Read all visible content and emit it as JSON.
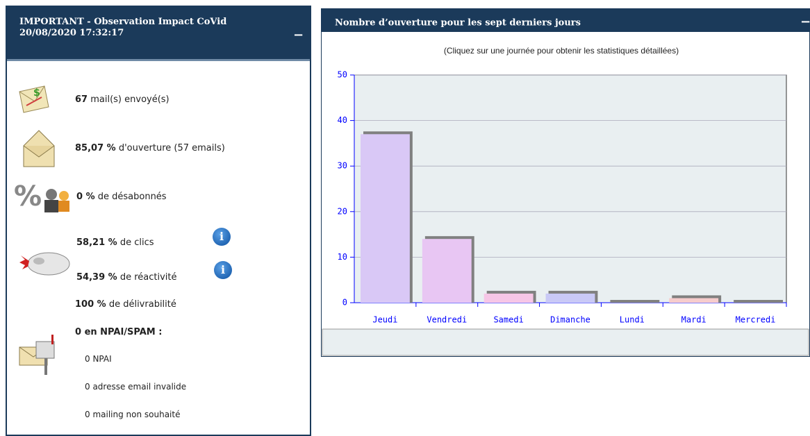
{
  "panel": {
    "title": "IMPORTANT - Observation Impact CoVid",
    "date": "20/08/2020 17:32:17",
    "collapse": "−",
    "stats": [
      {
        "value": "67",
        "text": "mail(s) envoyé(s)"
      },
      {
        "value": "85,07 %",
        "text": "d'ouverture (57 emails)"
      },
      {
        "value": "0 %",
        "text": "de désabonnés"
      },
      {
        "value": "58,21 %",
        "text": "de clics"
      },
      {
        "value": "54,39 %",
        "text": "de réactivité"
      },
      {
        "value": "100 %",
        "text": "de délivrabilité"
      }
    ],
    "npai": {
      "title": "0 en NPAI/SPAM :",
      "items": [
        "0 NPAI",
        "0 adresse email invalide",
        "0 mailing non souhaité"
      ]
    },
    "info_icon": "i"
  },
  "chart_panel": {
    "collapse": "−"
  },
  "chart_data": {
    "type": "bar",
    "title": "Nombre d’ouverture pour les sept derniers jours",
    "subtitle": "(Cliquez sur une journée pour obtenir les statistiques détaillées)",
    "categories": [
      "Jeudi",
      "Vendredi",
      "Samedi",
      "Dimanche",
      "Lundi",
      "Mardi",
      "Mercredi"
    ],
    "values": [
      37,
      14,
      2,
      2,
      0,
      1,
      0
    ],
    "colors": [
      "#d9c8f6",
      "#e8c6f3",
      "#f6c6e6",
      "#c9c9f6",
      "#c9e6f6",
      "#f6cccc",
      "#ccf6cc"
    ],
    "ylim": [
      0,
      50
    ],
    "yticks": [
      0,
      10,
      20,
      30,
      40,
      50
    ],
    "grid": true
  }
}
